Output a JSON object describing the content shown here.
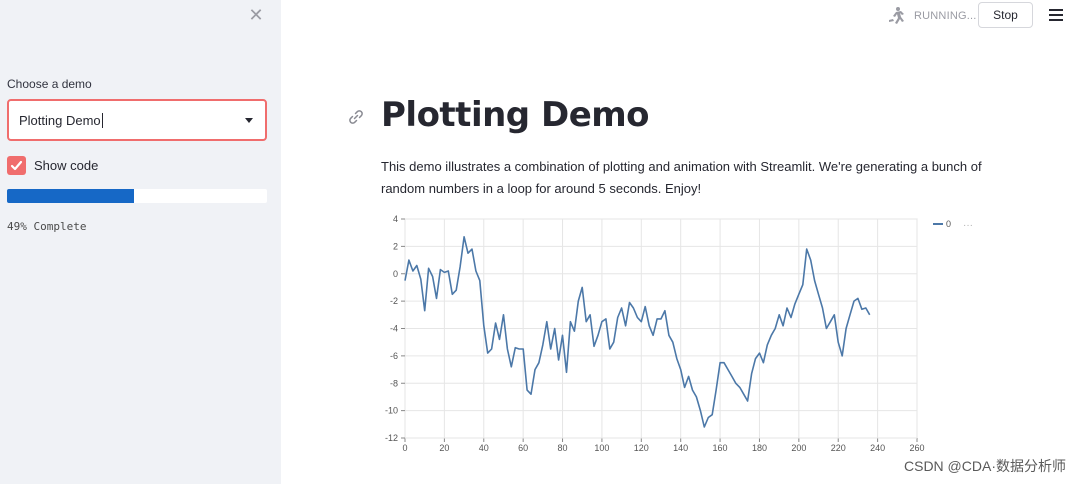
{
  "sidebar": {
    "close_icon": "close-icon",
    "select_label": "Choose a demo",
    "select_value": "Plotting Demo",
    "show_code_label": "Show code",
    "show_code_checked": true,
    "progress": 0.49,
    "progress_text": "49% Complete"
  },
  "header": {
    "running_icon": "running-man-icon",
    "status_text": "RUNNING...",
    "stop_label": "Stop",
    "menu_icon": "hamburger-icon"
  },
  "main": {
    "title": "Plotting Demo",
    "description": "This demo illustrates a combination of plotting and animation with Streamlit. We're generating a bunch of random numbers in a loop for around 5 seconds. Enjoy!"
  },
  "chart_data": {
    "type": "line",
    "title": "",
    "xlabel": "",
    "ylabel": "",
    "xlim": [
      0,
      260
    ],
    "ylim": [
      -12,
      4
    ],
    "xticks": [
      0,
      20,
      40,
      60,
      80,
      100,
      120,
      140,
      160,
      180,
      200,
      220,
      240,
      260
    ],
    "yticks": [
      4,
      2,
      0,
      -2,
      -4,
      -6,
      -8,
      -10,
      -12
    ],
    "grid": true,
    "legend": "top-right",
    "legend_label": "0",
    "legend_more": "···",
    "series": [
      {
        "name": "0",
        "color": "#4c78a8",
        "points": [
          [
            0,
            -0.5
          ],
          [
            2,
            1
          ],
          [
            4,
            0.2
          ],
          [
            6,
            0.6
          ],
          [
            8,
            -0.4
          ],
          [
            10,
            -2.7
          ],
          [
            12,
            0.4
          ],
          [
            14,
            -0.2
          ],
          [
            16,
            -1.8
          ],
          [
            18,
            0.3
          ],
          [
            20,
            0.1
          ],
          [
            22,
            0.2
          ],
          [
            24,
            -1.5
          ],
          [
            26,
            -1.2
          ],
          [
            28,
            0.5
          ],
          [
            30,
            2.7
          ],
          [
            32,
            1.5
          ],
          [
            34,
            1.8
          ],
          [
            36,
            0.2
          ],
          [
            38,
            -0.5
          ],
          [
            40,
            -3.8
          ],
          [
            42,
            -5.8
          ],
          [
            44,
            -5.5
          ],
          [
            46,
            -3.6
          ],
          [
            48,
            -4.8
          ],
          [
            50,
            -3
          ],
          [
            52,
            -5.5
          ],
          [
            54,
            -6.8
          ],
          [
            56,
            -5.4
          ],
          [
            58,
            -5.5
          ],
          [
            60,
            -5.5
          ],
          [
            62,
            -8.5
          ],
          [
            64,
            -8.8
          ],
          [
            66,
            -7
          ],
          [
            68,
            -6.5
          ],
          [
            70,
            -5.2
          ],
          [
            72,
            -3.5
          ],
          [
            74,
            -5.5
          ],
          [
            76,
            -4
          ],
          [
            78,
            -6.3
          ],
          [
            80,
            -4.5
          ],
          [
            82,
            -7.2
          ],
          [
            84,
            -3.5
          ],
          [
            86,
            -4.2
          ],
          [
            88,
            -2
          ],
          [
            90,
            -1
          ],
          [
            92,
            -3.5
          ],
          [
            94,
            -3
          ],
          [
            96,
            -5.3
          ],
          [
            98,
            -4.5
          ],
          [
            100,
            -3.5
          ],
          [
            102,
            -3.3
          ],
          [
            104,
            -5.5
          ],
          [
            106,
            -5
          ],
          [
            108,
            -3.2
          ],
          [
            110,
            -2.5
          ],
          [
            112,
            -3.8
          ],
          [
            114,
            -2.1
          ],
          [
            116,
            -2.5
          ],
          [
            118,
            -3.2
          ],
          [
            120,
            -3.5
          ],
          [
            122,
            -2.4
          ],
          [
            124,
            -3.8
          ],
          [
            126,
            -4.5
          ],
          [
            128,
            -3.3
          ],
          [
            130,
            -3.3
          ],
          [
            132,
            -2.7
          ],
          [
            134,
            -4.5
          ],
          [
            136,
            -5
          ],
          [
            138,
            -6.2
          ],
          [
            140,
            -7
          ],
          [
            142,
            -8.3
          ],
          [
            144,
            -7.5
          ],
          [
            146,
            -8.5
          ],
          [
            148,
            -9
          ],
          [
            150,
            -10
          ],
          [
            152,
            -11.2
          ],
          [
            154,
            -10.5
          ],
          [
            156,
            -10.3
          ],
          [
            158,
            -8.5
          ],
          [
            160,
            -6.5
          ],
          [
            162,
            -6.5
          ],
          [
            164,
            -7
          ],
          [
            166,
            -7.5
          ],
          [
            168,
            -8
          ],
          [
            170,
            -8.3
          ],
          [
            172,
            -8.8
          ],
          [
            174,
            -9.3
          ],
          [
            176,
            -7.3
          ],
          [
            178,
            -6.2
          ],
          [
            180,
            -5.8
          ],
          [
            182,
            -6.5
          ],
          [
            184,
            -5.2
          ],
          [
            186,
            -4.5
          ],
          [
            188,
            -4
          ],
          [
            190,
            -3
          ],
          [
            192,
            -3.8
          ],
          [
            194,
            -2.5
          ],
          [
            196,
            -3.2
          ],
          [
            198,
            -2.2
          ],
          [
            200,
            -1.5
          ],
          [
            202,
            -0.8
          ],
          [
            204,
            1.8
          ],
          [
            206,
            1
          ],
          [
            208,
            -0.5
          ],
          [
            210,
            -1.5
          ],
          [
            212,
            -2.5
          ],
          [
            214,
            -4
          ],
          [
            216,
            -3.5
          ],
          [
            218,
            -3
          ],
          [
            220,
            -5
          ],
          [
            222,
            -6
          ],
          [
            224,
            -4
          ],
          [
            226,
            -3
          ],
          [
            228,
            -2
          ],
          [
            230,
            -1.8
          ],
          [
            232,
            -2.6
          ],
          [
            234,
            -2.5
          ],
          [
            236,
            -3
          ]
        ]
      }
    ]
  },
  "watermark": "CSDN @CDA·数据分析师"
}
